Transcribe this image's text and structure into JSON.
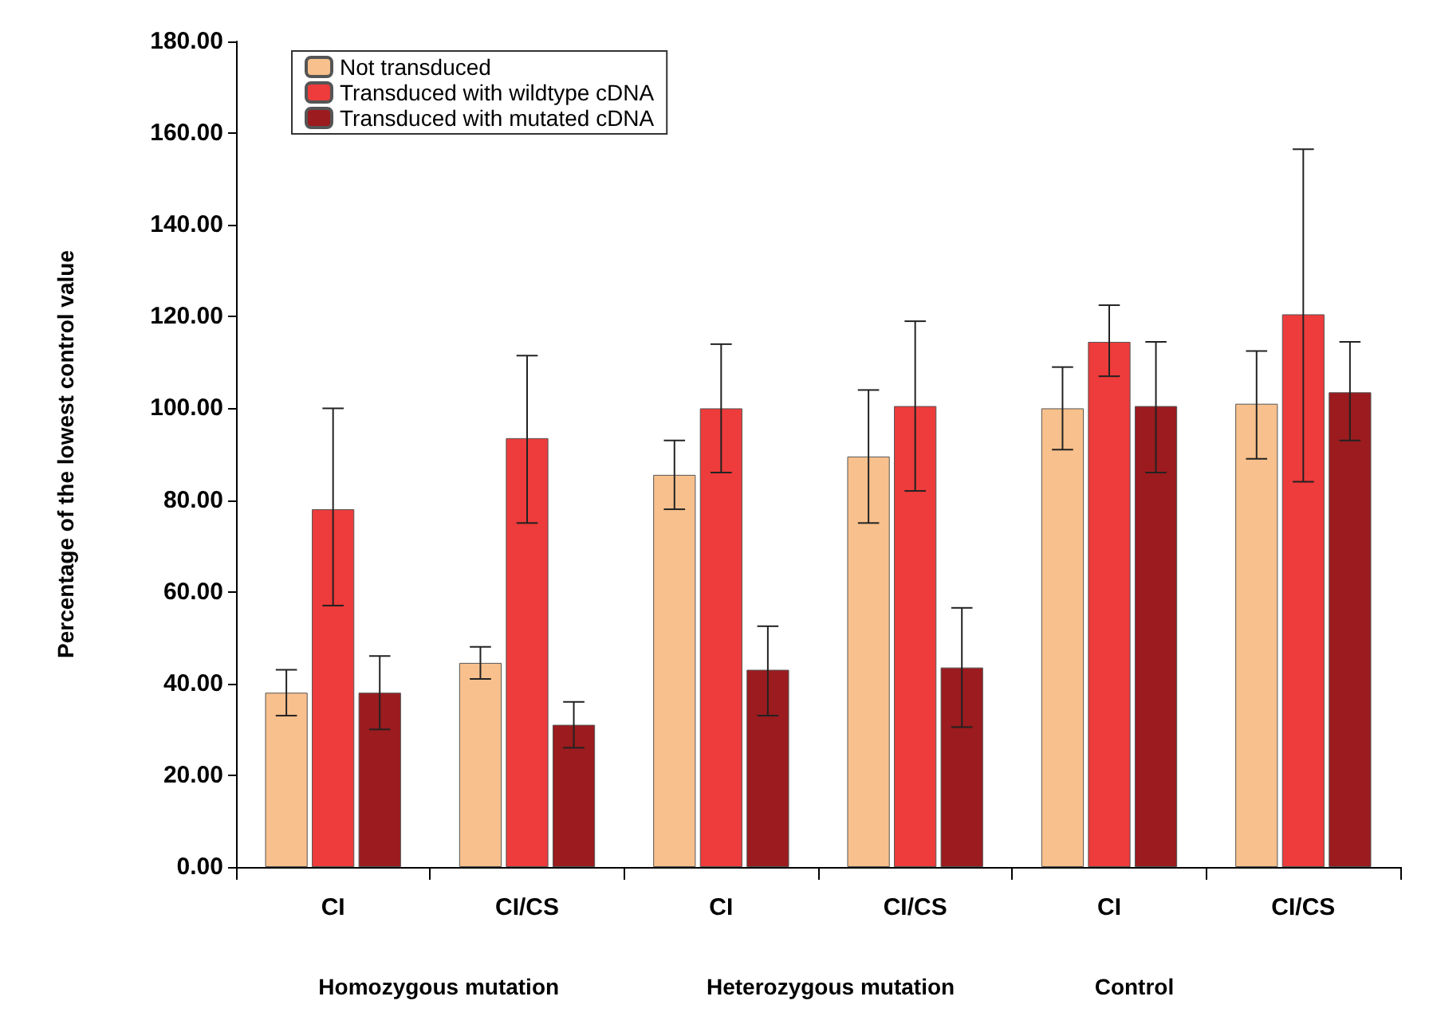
{
  "chart_data": {
    "type": "bar",
    "ylabel": "Percentage of the lowest control value",
    "categories": [
      "CI",
      "CI/CS",
      "CI",
      "CI/CS",
      "CI",
      "CI/CS"
    ],
    "series": [
      {
        "name": "Not transduced",
        "color": "#f8c08c",
        "values": [
          38,
          44.5,
          85.5,
          89.5,
          100,
          101
        ],
        "errors": [
          [
            33,
            43
          ],
          [
            41,
            48
          ],
          [
            78,
            93
          ],
          [
            75,
            104
          ],
          [
            91,
            109
          ],
          [
            89,
            112.5
          ]
        ]
      },
      {
        "name": "Transduced with wildtype cDNA",
        "color": "#ee3b3b",
        "values": [
          78,
          93.5,
          100,
          100.5,
          114.5,
          120.5
        ],
        "errors": [
          [
            57,
            100
          ],
          [
            75,
            111.5
          ],
          [
            86,
            114
          ],
          [
            82,
            119
          ],
          [
            107,
            122.5
          ],
          [
            84,
            156.5
          ]
        ]
      },
      {
        "name": "Transduced with mutated cDNA",
        "color": "#9b1b1e",
        "values": [
          38,
          31,
          43,
          43.5,
          100.5,
          103.5
        ],
        "errors": [
          [
            30,
            46
          ],
          [
            26,
            36
          ],
          [
            33,
            52.5
          ],
          [
            30.5,
            56.5
          ],
          [
            86,
            114.5
          ],
          [
            93,
            114.5
          ]
        ]
      }
    ],
    "annotations": [
      "Homozygous mutation",
      "Heterozygous mutation",
      "Control"
    ],
    "ylim": [
      0,
      180
    ],
    "yticks": [
      {
        "value": 0,
        "label": "0.00"
      },
      {
        "value": 20,
        "label": "20.00"
      },
      {
        "value": 40,
        "label": "40.00"
      },
      {
        "value": 60,
        "label": "60.00"
      },
      {
        "value": 80,
        "label": "80.00"
      },
      {
        "value": 100,
        "label": "100.00"
      },
      {
        "value": 120,
        "label": "120.00"
      },
      {
        "value": 140,
        "label": "140.00"
      },
      {
        "value": 160,
        "label": "160.00"
      },
      {
        "value": 180,
        "label": "180.00"
      }
    ],
    "grid": false,
    "legend": "top left"
  }
}
